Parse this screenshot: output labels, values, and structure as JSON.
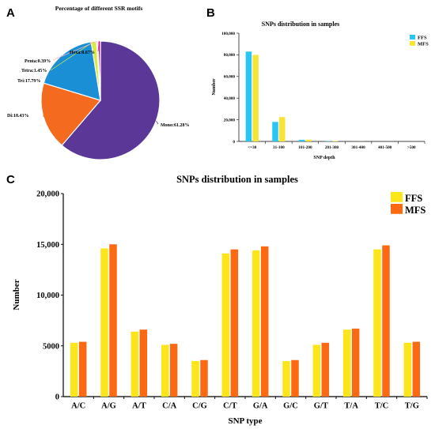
{
  "panels": {
    "a": "A",
    "b": "B",
    "c": "C"
  },
  "chart_data": [
    {
      "id": "A",
      "type": "pie",
      "title": "Percentage of different SSR motifs",
      "slices": [
        {
          "label": "Mono:61.28%",
          "value": 61.28,
          "color": "#5b3797"
        },
        {
          "label": "Di:18.43%",
          "value": 18.43,
          "color": "#f46a1f"
        },
        {
          "label": "Tri:17.79%",
          "value": 17.79,
          "color": "#1b8fd6"
        },
        {
          "label": "Tetra:1.45%",
          "value": 1.45,
          "color": "#d9ec3c"
        },
        {
          "label": "Penta:0.39%",
          "value": 0.39,
          "color": "#f9b8d0"
        },
        {
          "label": "Hexa:0.67%",
          "value": 0.67,
          "color": "#c61b8a"
        }
      ]
    },
    {
      "id": "B",
      "type": "bar",
      "title": "SNPs distribution in samples",
      "xlabel": "SNP depth",
      "ylabel": "Number",
      "categories": [
        "<=30",
        "31-100",
        "101-200",
        "201-300",
        "301-400",
        "401-500",
        ">500"
      ],
      "ylim": [
        0,
        100000
      ],
      "yticks": [
        0,
        20000,
        40000,
        60000,
        80000,
        100000
      ],
      "ytick_labels": [
        "0",
        "20,000",
        "40,000",
        "60,000",
        "80,000",
        "100,000"
      ],
      "legend_position": "top-right",
      "series": [
        {
          "name": "FFS",
          "color": "#29c5f6",
          "values": [
            83000,
            18000,
            1500,
            300,
            80,
            30,
            20
          ]
        },
        {
          "name": "MFS",
          "color": "#f7e535",
          "values": [
            80000,
            22500,
            1600,
            400,
            100,
            40,
            30
          ]
        }
      ]
    },
    {
      "id": "C",
      "type": "bar",
      "title": "SNPs distribution in samples",
      "xlabel": "SNP type",
      "ylabel": "Number",
      "categories": [
        "A/C",
        "A/G",
        "A/T",
        "C/A",
        "C/G",
        "C/T",
        "G/A",
        "G/C",
        "G/T",
        "T/A",
        "T/C",
        "T/G"
      ],
      "ylim": [
        0,
        20000
      ],
      "yticks": [
        0,
        5000,
        10000,
        15000,
        20000
      ],
      "ytick_labels": [
        "0",
        "5000",
        "10,000",
        "15,000",
        "20,000"
      ],
      "legend_position": "top-right",
      "series": [
        {
          "name": "FFS",
          "color": "#fce51a",
          "values": [
            5300,
            14600,
            6400,
            5100,
            3500,
            14100,
            14400,
            3500,
            5100,
            6600,
            14500,
            5300
          ]
        },
        {
          "name": "MFS",
          "color": "#fb6a12",
          "values": [
            5400,
            15000,
            6600,
            5200,
            3600,
            14500,
            14800,
            3600,
            5300,
            6700,
            14900,
            5400
          ]
        }
      ]
    }
  ]
}
